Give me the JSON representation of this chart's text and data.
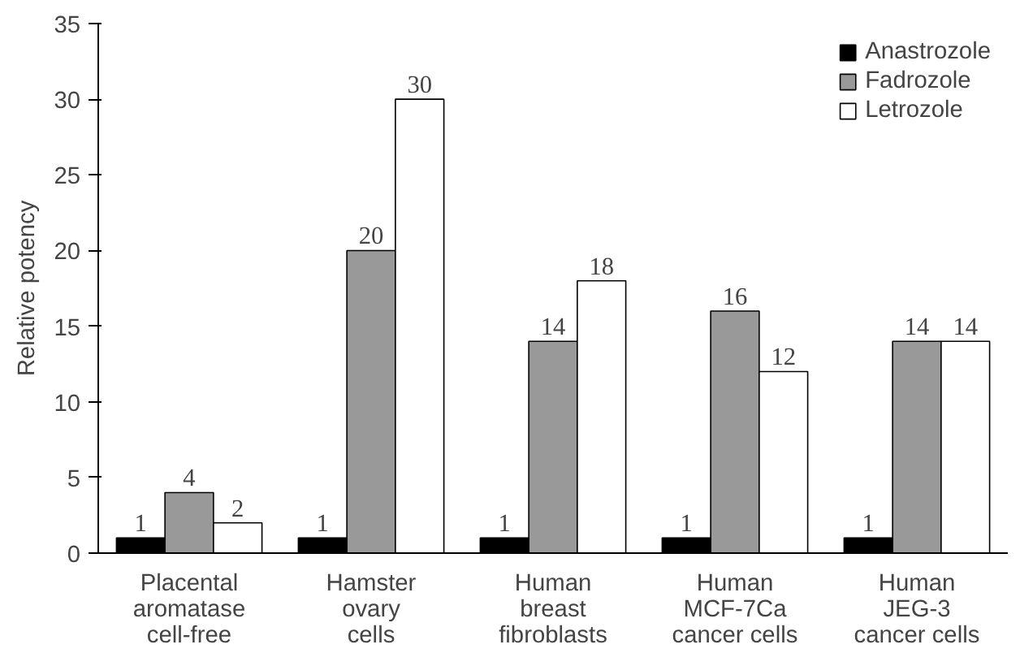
{
  "chart_data": {
    "type": "bar",
    "ylabel": "Relative potency",
    "categories": [
      "Placental\naromatase\ncell-free",
      "Hamster\novary\ncells",
      "Human\nbreast\nfibroblasts",
      "Human\nMCF-7Ca\ncancer cells",
      "Human\nJEG-3\ncancer cells"
    ],
    "series": [
      {
        "name": "Anastrozole",
        "color": "#000000",
        "values": [
          1,
          1,
          1,
          1,
          1
        ]
      },
      {
        "name": "Fadrozole",
        "color": "#999999",
        "values": [
          4,
          20,
          14,
          16,
          14
        ]
      },
      {
        "name": "Letrozole",
        "color": "#ffffff",
        "values": [
          2,
          30,
          18,
          12,
          14
        ]
      }
    ],
    "ylim": [
      0,
      35
    ],
    "yticks": [
      0,
      5,
      10,
      15,
      20,
      25,
      30,
      35
    ],
    "data_labels": true,
    "grid": false,
    "legend": "top right"
  }
}
